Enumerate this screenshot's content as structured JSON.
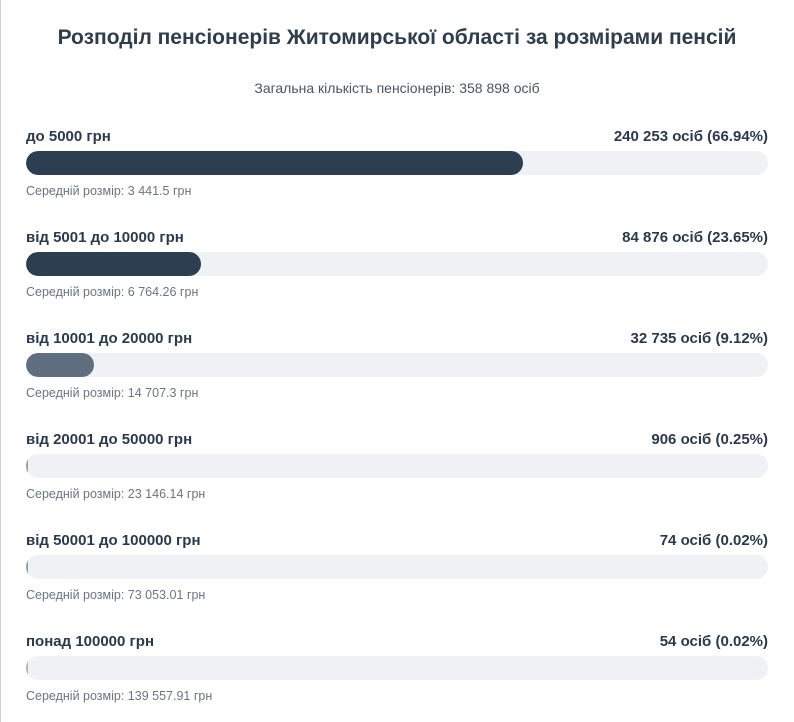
{
  "chart_data": {
    "type": "bar",
    "orientation": "horizontal",
    "title": "Розподіл пенсіонерів Житомирської області за розмірами пенсій",
    "subtitle": "Загальна кількість пенсіонерів: 358 898 осіб",
    "xlim": [
      0,
      100
    ],
    "categories": [
      "до 5000 грн",
      "від 5001 до 10000 грн",
      "від 10001 до 20000 грн",
      "від 20001 до 50000 грн",
      "від 50001 до 100000 грн",
      "понад 100000 грн"
    ],
    "values": [
      66.94,
      23.65,
      9.12,
      0.25,
      0.02,
      0.02
    ],
    "count_labels": [
      "240 253 осіб (66.94%)",
      "84 876 осіб (23.65%)",
      "32 735 осіб (9.12%)",
      "906 осіб (0.25%)",
      "74 осіб (0.02%)",
      "54 осіб (0.02%)"
    ],
    "average_labels": [
      "Середній розмір: 3 441.5 грн",
      "Середній розмір: 6 764.26 грн",
      "Середній розмір: 14 707.3 грн",
      "Середній розмір: 23 146.14 грн",
      "Середній розмір: 73 053.01 грн",
      "Середній розмір: 139 557.91 грн"
    ],
    "colors": [
      "#2c3e50",
      "#2c3e50",
      "#5f6f80",
      "#8fa3a6",
      "#8ea697",
      "#a9b8c3"
    ]
  }
}
